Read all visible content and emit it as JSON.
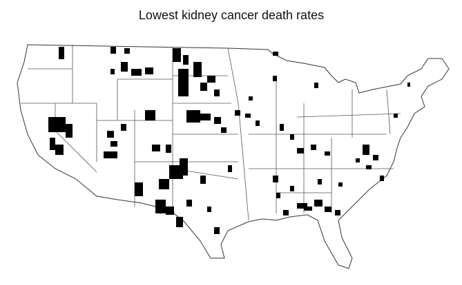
{
  "title": "Lowest kidney cancer death rates"
}
